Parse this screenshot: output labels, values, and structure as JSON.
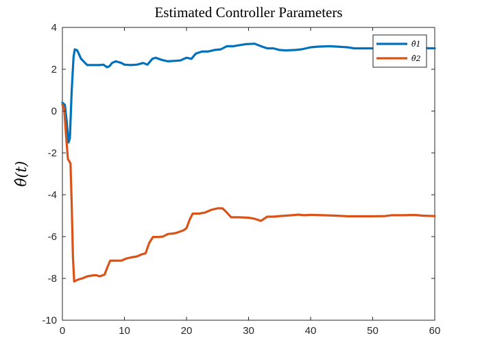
{
  "chart_data": {
    "type": "line",
    "title": "Estimated Controller Parameters",
    "ylabel": "θ̂(t)",
    "xlabel": "",
    "xlim": [
      0,
      60
    ],
    "ylim": [
      -10,
      4
    ],
    "xticks": [
      0,
      10,
      20,
      30,
      40,
      50,
      60
    ],
    "yticks": [
      4,
      2,
      0,
      -2,
      -4,
      -6,
      -8,
      -10
    ],
    "grid": false,
    "legend_position": "top-right",
    "series": [
      {
        "name": "θ̂1",
        "color": "#0072BD",
        "points": [
          [
            0,
            0.4
          ],
          [
            0.4,
            0.3
          ],
          [
            0.7,
            -0.5
          ],
          [
            1.0,
            -1.5
          ],
          [
            1.2,
            -1.3
          ],
          [
            1.5,
            1.0
          ],
          [
            1.8,
            2.6
          ],
          [
            2.0,
            2.95
          ],
          [
            2.4,
            2.9
          ],
          [
            3,
            2.5
          ],
          [
            4,
            2.2
          ],
          [
            5,
            2.2
          ],
          [
            6,
            2.2
          ],
          [
            6.6,
            2.22
          ],
          [
            7.2,
            2.1
          ],
          [
            7.6,
            2.15
          ],
          [
            8,
            2.3
          ],
          [
            8.6,
            2.38
          ],
          [
            9.5,
            2.3
          ],
          [
            10,
            2.22
          ],
          [
            11,
            2.2
          ],
          [
            12,
            2.22
          ],
          [
            13,
            2.3
          ],
          [
            13.7,
            2.22
          ],
          [
            14.5,
            2.5
          ],
          [
            15,
            2.55
          ],
          [
            16,
            2.45
          ],
          [
            17,
            2.38
          ],
          [
            18,
            2.4
          ],
          [
            19,
            2.42
          ],
          [
            20,
            2.55
          ],
          [
            20.8,
            2.5
          ],
          [
            21.5,
            2.75
          ],
          [
            22.5,
            2.85
          ],
          [
            23.5,
            2.85
          ],
          [
            24.5,
            2.92
          ],
          [
            25.5,
            2.95
          ],
          [
            26.5,
            3.1
          ],
          [
            27.5,
            3.1
          ],
          [
            28.5,
            3.15
          ],
          [
            29.5,
            3.2
          ],
          [
            31,
            3.22
          ],
          [
            32,
            3.1
          ],
          [
            33,
            3.0
          ],
          [
            34,
            3.0
          ],
          [
            35,
            2.92
          ],
          [
            36,
            2.9
          ],
          [
            37.5,
            2.92
          ],
          [
            38.5,
            2.95
          ],
          [
            40,
            3.05
          ],
          [
            41,
            3.08
          ],
          [
            43,
            3.1
          ],
          [
            44.5,
            3.08
          ],
          [
            46,
            3.05
          ],
          [
            47,
            3.0
          ],
          [
            48.5,
            3.0
          ],
          [
            50,
            3.0
          ],
          [
            51,
            3.0
          ],
          [
            52,
            3.05
          ],
          [
            54,
            3.02
          ],
          [
            56,
            3.02
          ],
          [
            58,
            3.01
          ],
          [
            60,
            3.0
          ]
        ]
      },
      {
        "name": "θ̂2",
        "color": "#D95319",
        "points": [
          [
            0,
            0.3
          ],
          [
            0.3,
            0.1
          ],
          [
            0.6,
            -1.2
          ],
          [
            0.9,
            -2.3
          ],
          [
            1.1,
            -2.4
          ],
          [
            1.3,
            -2.5
          ],
          [
            1.5,
            -4.5
          ],
          [
            1.7,
            -7.0
          ],
          [
            1.9,
            -8.15
          ],
          [
            2.2,
            -8.1
          ],
          [
            2.6,
            -8.05
          ],
          [
            3.2,
            -8.0
          ],
          [
            4,
            -7.9
          ],
          [
            5,
            -7.85
          ],
          [
            5.5,
            -7.85
          ],
          [
            6,
            -7.9
          ],
          [
            6.8,
            -7.82
          ],
          [
            7.2,
            -7.5
          ],
          [
            7.7,
            -7.15
          ],
          [
            8.5,
            -7.15
          ],
          [
            9.5,
            -7.15
          ],
          [
            10.3,
            -7.05
          ],
          [
            11,
            -7.0
          ],
          [
            12,
            -6.95
          ],
          [
            12.8,
            -6.85
          ],
          [
            13.4,
            -6.8
          ],
          [
            14,
            -6.3
          ],
          [
            14.6,
            -6.02
          ],
          [
            15.5,
            -6.02
          ],
          [
            16.2,
            -6.0
          ],
          [
            17,
            -5.88
          ],
          [
            18,
            -5.85
          ],
          [
            18.6,
            -5.8
          ],
          [
            19.5,
            -5.7
          ],
          [
            20,
            -5.6
          ],
          [
            20.5,
            -5.2
          ],
          [
            21,
            -4.9
          ],
          [
            22,
            -4.9
          ],
          [
            23,
            -4.85
          ],
          [
            24,
            -4.72
          ],
          [
            25,
            -4.65
          ],
          [
            25.8,
            -4.65
          ],
          [
            26.5,
            -4.85
          ],
          [
            27.2,
            -5.08
          ],
          [
            28.5,
            -5.08
          ],
          [
            30,
            -5.1
          ],
          [
            31,
            -5.15
          ],
          [
            32,
            -5.25
          ],
          [
            33,
            -5.05
          ],
          [
            34,
            -5.05
          ],
          [
            35,
            -5.02
          ],
          [
            36,
            -5.0
          ],
          [
            37,
            -4.98
          ],
          [
            38,
            -4.95
          ],
          [
            39,
            -4.98
          ],
          [
            40,
            -4.96
          ],
          [
            42,
            -4.98
          ],
          [
            44,
            -5.0
          ],
          [
            46,
            -5.03
          ],
          [
            48,
            -5.03
          ],
          [
            50,
            -5.03
          ],
          [
            52,
            -5.02
          ],
          [
            53,
            -4.98
          ],
          [
            55,
            -4.98
          ],
          [
            56,
            -4.97
          ],
          [
            57,
            -4.97
          ],
          [
            58,
            -5.0
          ],
          [
            60,
            -5.02
          ]
        ]
      }
    ]
  }
}
